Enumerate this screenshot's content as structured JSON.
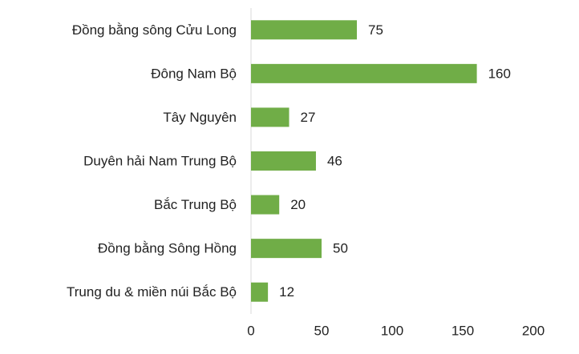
{
  "chart_data": {
    "type": "barh",
    "categories": [
      "Đồng bằng sông Cửu Long",
      "Đông Nam Bộ",
      "Tây Nguyên",
      "Duyên hải Nam Trung Bộ",
      "Bắc Trung Bộ",
      "Đồng bằng Sông Hồng",
      "Trung du & miền núi Bắc Bộ"
    ],
    "values": [
      75,
      160,
      27,
      46,
      20,
      50,
      12
    ],
    "color": "#70ad47",
    "xlim": [
      0,
      200
    ],
    "xticks": [
      0,
      50,
      100,
      150,
      200
    ],
    "grid": false
  }
}
